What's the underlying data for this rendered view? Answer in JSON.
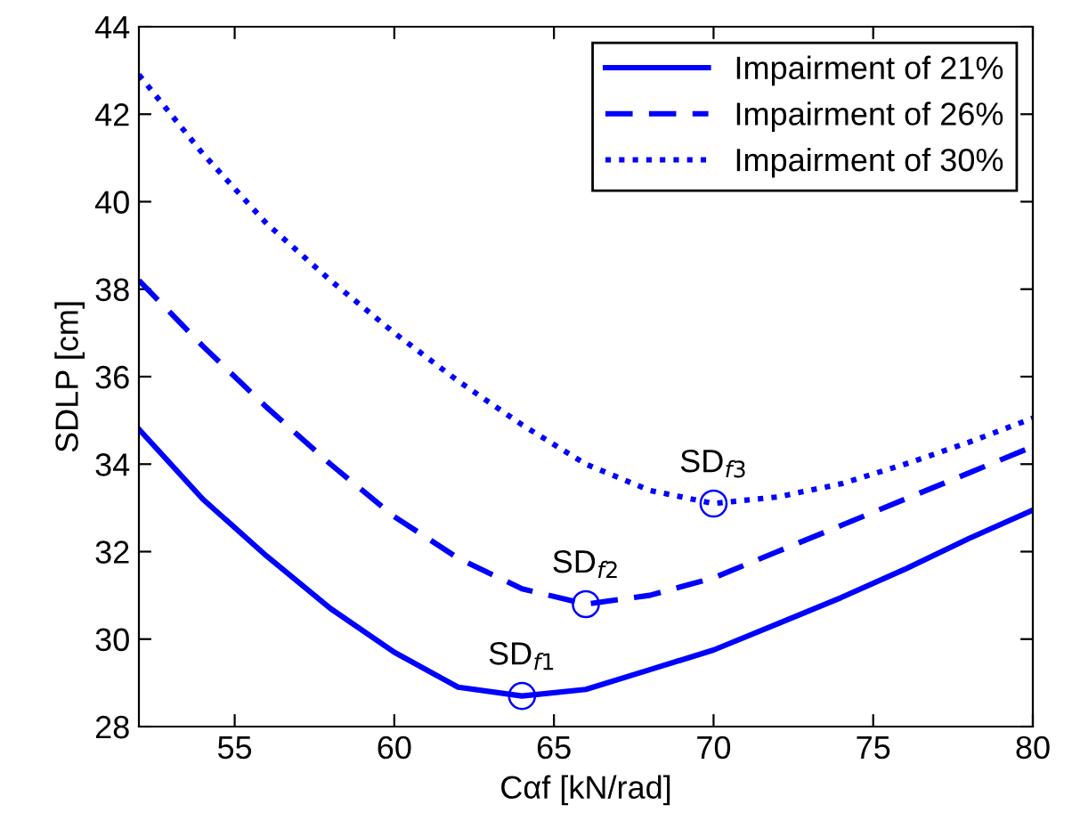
{
  "chart_data": {
    "type": "line",
    "xlabel": "Cαf [kN/rad]",
    "ylabel": "SDLP [cm]",
    "xlim": [
      52,
      80
    ],
    "ylim": [
      28,
      44
    ],
    "xticks": [
      55,
      60,
      65,
      70,
      75,
      80
    ],
    "yticks": [
      28,
      30,
      32,
      34,
      36,
      38,
      40,
      42,
      44
    ],
    "grid": false,
    "legend": "top right",
    "series": [
      {
        "name": "Impairment of 21%",
        "color": "#0000ff",
        "line_style": "solid",
        "x": [
          52,
          54,
          56,
          58,
          60,
          62,
          64,
          66,
          68,
          70,
          72,
          74,
          76,
          78,
          80
        ],
        "values": [
          34.8,
          33.2,
          31.9,
          30.7,
          29.7,
          28.9,
          28.7,
          28.85,
          29.3,
          29.75,
          30.35,
          30.95,
          31.6,
          32.3,
          32.95
        ]
      },
      {
        "name": "Impairment of 26%",
        "color": "#0000ff",
        "line_style": "dashed",
        "x": [
          52,
          54,
          56,
          58,
          60,
          62,
          64,
          66,
          68,
          70,
          72,
          74,
          76,
          78,
          80
        ],
        "values": [
          38.2,
          36.7,
          35.3,
          34.0,
          32.8,
          31.85,
          31.15,
          30.8,
          31.0,
          31.4,
          32.0,
          32.6,
          33.2,
          33.8,
          34.4
        ]
      },
      {
        "name": "Impairment of 30%",
        "color": "#0000ff",
        "line_style": "dotted",
        "x": [
          52,
          54,
          56,
          58,
          60,
          62,
          64,
          66,
          68,
          70,
          72,
          74,
          76,
          78,
          80
        ],
        "values": [
          42.9,
          41.1,
          39.5,
          38.2,
          37.0,
          35.9,
          34.9,
          34.0,
          33.4,
          33.1,
          33.25,
          33.55,
          34.0,
          34.5,
          35.05
        ]
      },
      {
        "type": "scatter",
        "marker": "circle",
        "color": "#0000ff",
        "x": [
          64,
          66,
          70
        ],
        "values": [
          28.7,
          30.8,
          33.1
        ]
      }
    ],
    "annotations": [
      {
        "text": "SD$_{f1}$",
        "x": 64,
        "y": 28.7
      },
      {
        "text": "SD$_{f2}$",
        "x": 66,
        "y": 30.8
      },
      {
        "text": "SD$_{f3}$",
        "x": 70,
        "y": 33.1
      }
    ]
  }
}
